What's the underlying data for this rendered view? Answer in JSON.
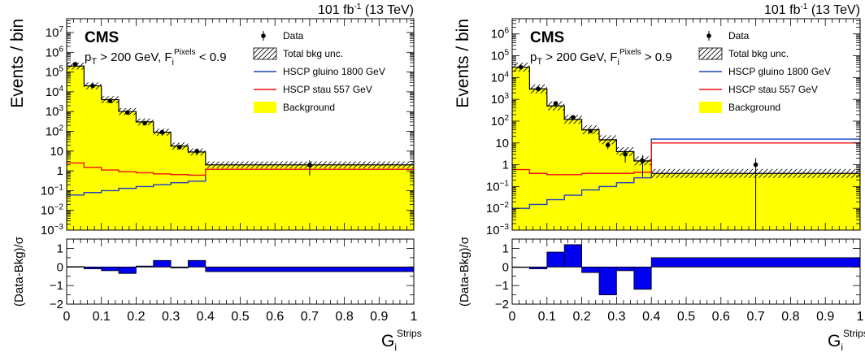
{
  "chart_data": [
    {
      "type": "histogram-with-ratio",
      "lumi_label": "101 fb",
      "lumi_exp": "-1",
      "lumi_energy": " (13 TeV)",
      "experiment": "CMS",
      "selection": {
        "pt_text": "p",
        "pt_sub": "T",
        "mid_text": " > 200 GeV, F",
        "f_sub": "i",
        "f_sup": "Pixels",
        "cut": " < 0.9"
      },
      "ylabel": "Events / bin",
      "ratio_ylabel": "(Data-Bkg)/σ",
      "xlabel_main": "G",
      "xlabel_sub": "i",
      "xlabel_sup": "Strips",
      "xlim": [
        0,
        1
      ],
      "ylim": [
        0.001,
        50000000
      ],
      "yscale": "log",
      "ratio_ylim": [
        -2,
        1.5
      ],
      "x_ticks": [
        "0",
        "0.1",
        "0.2",
        "0.3",
        "0.4",
        "0.5",
        "0.6",
        "0.7",
        "0.8",
        "0.9",
        "1"
      ],
      "y_ticks": [
        {
          "base": "10",
          "exp": "−3",
          "v": 0.001
        },
        {
          "base": "10",
          "exp": "−2",
          "v": 0.01
        },
        {
          "base": "10",
          "exp": "−1",
          "v": 0.1
        },
        {
          "base": "1",
          "exp": "",
          "v": 1
        },
        {
          "base": "10",
          "exp": "",
          "v": 10
        },
        {
          "base": "10",
          "exp": "2",
          "v": 100
        },
        {
          "base": "10",
          "exp": "3",
          "v": 1000
        },
        {
          "base": "10",
          "exp": "4",
          "v": 10000
        },
        {
          "base": "10",
          "exp": "5",
          "v": 100000
        },
        {
          "base": "10",
          "exp": "6",
          "v": 1000000
        },
        {
          "base": "10",
          "exp": "7",
          "v": 10000000
        }
      ],
      "ratio_ticks": [
        "−2",
        "−1",
        "0",
        "1"
      ],
      "ratio_tick_values": [
        -2,
        -1,
        0,
        1
      ],
      "legend": [
        "Data",
        "Total bkg unc.",
        "HSCP gluino 1800 GeV",
        "HSCP stau 557 GeV",
        "Background"
      ],
      "bin_edges": [
        0,
        0.05,
        0.1,
        0.15,
        0.2,
        0.25,
        0.3,
        0.35,
        0.4,
        1.0
      ],
      "background": [
        200000,
        20000,
        4000,
        1000,
        300,
        90,
        18,
        9,
        2
      ],
      "bkg_unc_rel": 0.5,
      "data": [
        250000,
        20000,
        3500,
        900,
        260,
        90,
        16,
        10,
        2
      ],
      "data_x": [
        0.025,
        0.075,
        0.125,
        0.175,
        0.225,
        0.275,
        0.325,
        0.375,
        0.7
      ],
      "gluino": [
        0.06,
        0.08,
        0.1,
        0.13,
        0.16,
        0.2,
        0.25,
        0.3,
        1.2
      ],
      "stau": [
        2.5,
        1.5,
        1.1,
        0.9,
        0.8,
        0.7,
        0.65,
        0.6,
        1.2
      ],
      "ratio": [
        0.02,
        -0.1,
        -0.2,
        -0.35,
        0.05,
        0.35,
        -0.05,
        0.35,
        -0.25
      ],
      "colors": {
        "background": "#ffff00",
        "gluino": "#1f3fbf",
        "stau": "#ee1111",
        "ratio": "#0000ee"
      }
    },
    {
      "type": "histogram-with-ratio",
      "lumi_label": "101 fb",
      "lumi_exp": "-1",
      "lumi_energy": " (13 TeV)",
      "experiment": "CMS",
      "selection": {
        "pt_text": "p",
        "pt_sub": "T",
        "mid_text": " > 200 GeV, F",
        "f_sub": "i",
        "f_sup": "Pixels",
        "cut": " > 0.9"
      },
      "ylabel": "Events / bin",
      "ratio_ylabel": "(Data-Bkg)/σ",
      "xlabel_main": "G",
      "xlabel_sub": "i",
      "xlabel_sup": "Strips",
      "xlim": [
        0,
        1
      ],
      "ylim": [
        0.001,
        5000000
      ],
      "yscale": "log",
      "ratio_ylim": [
        -2,
        1.5
      ],
      "x_ticks": [
        "0",
        "0.1",
        "0.2",
        "0.3",
        "0.4",
        "0.5",
        "0.6",
        "0.7",
        "0.8",
        "0.9",
        "1"
      ],
      "y_ticks": [
        {
          "base": "10",
          "exp": "−3",
          "v": 0.001
        },
        {
          "base": "10",
          "exp": "−2",
          "v": 0.01
        },
        {
          "base": "10",
          "exp": "−1",
          "v": 0.1
        },
        {
          "base": "1",
          "exp": "",
          "v": 1
        },
        {
          "base": "10",
          "exp": "",
          "v": 10
        },
        {
          "base": "10",
          "exp": "2",
          "v": 100
        },
        {
          "base": "10",
          "exp": "3",
          "v": 1000
        },
        {
          "base": "10",
          "exp": "4",
          "v": 10000
        },
        {
          "base": "10",
          "exp": "5",
          "v": 100000
        },
        {
          "base": "10",
          "exp": "6",
          "v": 1000000
        }
      ],
      "ratio_ticks": [
        "−2",
        "−1",
        "0",
        "1"
      ],
      "ratio_tick_values": [
        -2,
        -1,
        0,
        1
      ],
      "legend": [
        "Data",
        "Total bkg unc.",
        "HSCP gluino 1800 GeV",
        "HSCP stau 557 GeV",
        "Background"
      ],
      "bin_edges": [
        0,
        0.05,
        0.1,
        0.15,
        0.2,
        0.25,
        0.3,
        0.35,
        0.4,
        1.0
      ],
      "background": [
        30000,
        3000,
        500,
        120,
        40,
        14,
        4,
        1.5,
        0.4
      ],
      "bkg_unc_rel": 0.6,
      "data": [
        30000,
        3000,
        650,
        150,
        35,
        8,
        3,
        1.5,
        1
      ],
      "data_x": [
        0.025,
        0.075,
        0.125,
        0.175,
        0.225,
        0.275,
        0.325,
        0.375,
        0.7
      ],
      "gluino": [
        0.01,
        0.015,
        0.025,
        0.04,
        0.07,
        0.1,
        0.15,
        0.25,
        15
      ],
      "stau": [
        0.6,
        0.4,
        0.35,
        0.35,
        0.4,
        0.4,
        0.4,
        0.45,
        10
      ],
      "ratio": [
        0.0,
        -0.1,
        0.8,
        1.2,
        -0.3,
        -1.5,
        -0.2,
        -1.2,
        0.5
      ],
      "colors": {
        "background": "#ffff00",
        "gluino": "#1f3fbf",
        "stau": "#ee1111",
        "ratio": "#0000ee"
      }
    }
  ]
}
